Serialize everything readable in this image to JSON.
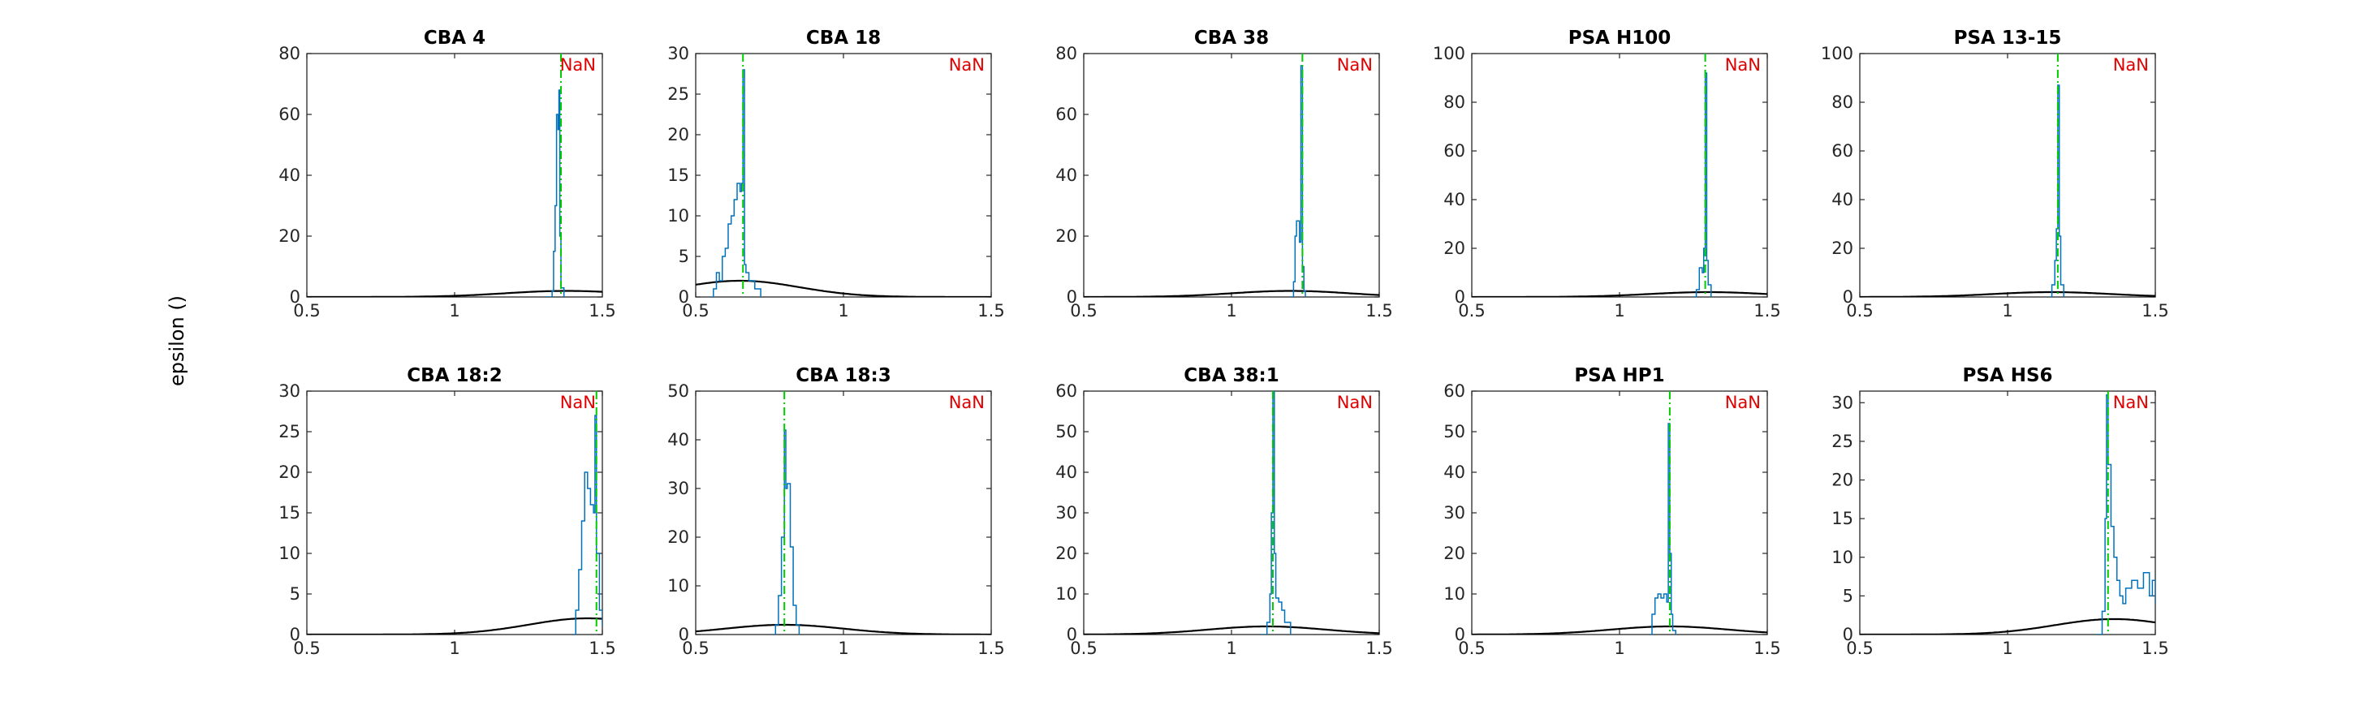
{
  "figure": {
    "ylabel": "epsilon ()",
    "colors": {
      "histogram": "#0072bd",
      "curve": "#000000",
      "reference_line": "#00cc00",
      "annotation": "#e00000"
    }
  },
  "chart_data": [
    {
      "type": "line",
      "title": "CBA 4",
      "annotation": "NaN",
      "xlim": [
        0.5,
        1.5
      ],
      "ylim": [
        0,
        80
      ],
      "xticks": [
        0.5,
        1,
        1.5
      ],
      "yticks": [
        0,
        20,
        40,
        60,
        80
      ],
      "xtick_labels": [
        "0.5",
        "1",
        "1.5"
      ],
      "reference_x": 1.36,
      "curve": {
        "mu": 1.38,
        "sigma": 0.21,
        "peak": 2
      },
      "histogram": [
        [
          1.31,
          0
        ],
        [
          1.33,
          2
        ],
        [
          1.335,
          15
        ],
        [
          1.34,
          30
        ],
        [
          1.345,
          60
        ],
        [
          1.35,
          55
        ],
        [
          1.353,
          68
        ],
        [
          1.356,
          20
        ],
        [
          1.36,
          3
        ],
        [
          1.37,
          0
        ]
      ]
    },
    {
      "type": "line",
      "title": "CBA 18",
      "annotation": "NaN",
      "xlim": [
        0.5,
        1.5
      ],
      "ylim": [
        0,
        30
      ],
      "xticks": [
        0.5,
        1,
        1.5
      ],
      "yticks": [
        0,
        5,
        10,
        15,
        20,
        25,
        30
      ],
      "xtick_labels": [
        "0.5",
        "1",
        "1.5"
      ],
      "reference_x": 0.66,
      "curve": {
        "mu": 0.65,
        "sigma": 0.2,
        "peak": 2
      },
      "histogram": [
        [
          0.55,
          0
        ],
        [
          0.56,
          1
        ],
        [
          0.57,
          3
        ],
        [
          0.58,
          2
        ],
        [
          0.59,
          5
        ],
        [
          0.6,
          6
        ],
        [
          0.61,
          9
        ],
        [
          0.62,
          10
        ],
        [
          0.63,
          12
        ],
        [
          0.64,
          14
        ],
        [
          0.65,
          13
        ],
        [
          0.655,
          14
        ],
        [
          0.66,
          28
        ],
        [
          0.665,
          4
        ],
        [
          0.67,
          3
        ],
        [
          0.68,
          2
        ],
        [
          0.7,
          1
        ],
        [
          0.72,
          0
        ]
      ]
    },
    {
      "type": "line",
      "title": "CBA 38",
      "annotation": "NaN",
      "xlim": [
        0.5,
        1.5
      ],
      "ylim": [
        0,
        80
      ],
      "xticks": [
        0.5,
        1,
        1.5
      ],
      "yticks": [
        0,
        20,
        40,
        60,
        80
      ],
      "xtick_labels": [
        "0.5",
        "1",
        "1.5"
      ],
      "reference_x": 1.24,
      "curve": {
        "mu": 1.2,
        "sigma": 0.2,
        "peak": 2
      },
      "histogram": [
        [
          1.2,
          0
        ],
        [
          1.21,
          5
        ],
        [
          1.215,
          20
        ],
        [
          1.22,
          25
        ],
        [
          1.23,
          18
        ],
        [
          1.235,
          76
        ],
        [
          1.24,
          10
        ],
        [
          1.245,
          2
        ],
        [
          1.25,
          0
        ]
      ]
    },
    {
      "type": "line",
      "title": "PSA H100",
      "annotation": "NaN",
      "xlim": [
        0.5,
        1.5
      ],
      "ylim": [
        0,
        100
      ],
      "xticks": [
        0.5,
        1,
        1.5
      ],
      "yticks": [
        0,
        20,
        40,
        60,
        80,
        100
      ],
      "xtick_labels": [
        "0.5",
        "1",
        "1.5"
      ],
      "reference_x": 1.29,
      "curve": {
        "mu": 1.3,
        "sigma": 0.2,
        "peak": 2
      },
      "histogram": [
        [
          1.25,
          0
        ],
        [
          1.26,
          3
        ],
        [
          1.27,
          12
        ],
        [
          1.28,
          10
        ],
        [
          1.285,
          20
        ],
        [
          1.29,
          92
        ],
        [
          1.295,
          15
        ],
        [
          1.3,
          5
        ],
        [
          1.31,
          0
        ]
      ]
    },
    {
      "type": "line",
      "title": "PSA 13-15",
      "annotation": "NaN",
      "xlim": [
        0.5,
        1.5
      ],
      "ylim": [
        0,
        100
      ],
      "xticks": [
        0.5,
        1,
        1.5
      ],
      "yticks": [
        0,
        20,
        40,
        60,
        80,
        100
      ],
      "xtick_labels": [
        "0.5",
        "1",
        "1.5"
      ],
      "reference_x": 1.17,
      "curve": {
        "mu": 1.15,
        "sigma": 0.2,
        "peak": 2
      },
      "histogram": [
        [
          1.14,
          0
        ],
        [
          1.15,
          5
        ],
        [
          1.16,
          15
        ],
        [
          1.165,
          28
        ],
        [
          1.17,
          87
        ],
        [
          1.175,
          25
        ],
        [
          1.18,
          5
        ],
        [
          1.19,
          0
        ]
      ]
    },
    {
      "type": "line",
      "title": "CBA 18:2",
      "annotation": "NaN",
      "xlim": [
        0.5,
        1.5
      ],
      "ylim": [
        0,
        30
      ],
      "xticks": [
        0.5,
        1,
        1.5
      ],
      "yticks": [
        0,
        5,
        10,
        15,
        20,
        25,
        30
      ],
      "xtick_labels": [
        "0.5",
        "1",
        "1.5"
      ],
      "reference_x": 1.48,
      "curve": {
        "mu": 1.45,
        "sigma": 0.2,
        "peak": 2
      },
      "histogram": [
        [
          1.4,
          0
        ],
        [
          1.41,
          3
        ],
        [
          1.42,
          8
        ],
        [
          1.43,
          14
        ],
        [
          1.44,
          20
        ],
        [
          1.45,
          18
        ],
        [
          1.46,
          16
        ],
        [
          1.47,
          15
        ],
        [
          1.475,
          27
        ],
        [
          1.48,
          10
        ],
        [
          1.49,
          3
        ],
        [
          1.5,
          1
        ]
      ]
    },
    {
      "type": "line",
      "title": "CBA 18:3",
      "annotation": "NaN",
      "xlim": [
        0.5,
        1.5
      ],
      "ylim": [
        0,
        50
      ],
      "xticks": [
        0.5,
        1,
        1.5
      ],
      "yticks": [
        0,
        10,
        20,
        30,
        40,
        50
      ],
      "xtick_labels": [
        "0.5",
        "1",
        "1.5"
      ],
      "reference_x": 0.8,
      "curve": {
        "mu": 0.8,
        "sigma": 0.2,
        "peak": 2
      },
      "histogram": [
        [
          0.76,
          0
        ],
        [
          0.77,
          2
        ],
        [
          0.78,
          8
        ],
        [
          0.79,
          20
        ],
        [
          0.8,
          42
        ],
        [
          0.805,
          30
        ],
        [
          0.81,
          31
        ],
        [
          0.82,
          18
        ],
        [
          0.83,
          6
        ],
        [
          0.84,
          2
        ],
        [
          0.85,
          0
        ]
      ]
    },
    {
      "type": "line",
      "title": "CBA 38:1",
      "annotation": "NaN",
      "xlim": [
        0.5,
        1.5
      ],
      "ylim": [
        0,
        60
      ],
      "xticks": [
        0.5,
        1,
        1.5
      ],
      "yticks": [
        0,
        10,
        20,
        30,
        40,
        50,
        60
      ],
      "xtick_labels": [
        "0.5",
        "1",
        "1.5"
      ],
      "reference_x": 1.14,
      "curve": {
        "mu": 1.12,
        "sigma": 0.2,
        "peak": 2
      },
      "histogram": [
        [
          1.1,
          0
        ],
        [
          1.12,
          3
        ],
        [
          1.13,
          10
        ],
        [
          1.135,
          30
        ],
        [
          1.14,
          60
        ],
        [
          1.145,
          20
        ],
        [
          1.15,
          9
        ],
        [
          1.16,
          8
        ],
        [
          1.17,
          6
        ],
        [
          1.18,
          3
        ],
        [
          1.2,
          0
        ]
      ]
    },
    {
      "type": "line",
      "title": "PSA HP1",
      "annotation": "NaN",
      "xlim": [
        0.5,
        1.5
      ],
      "ylim": [
        0,
        60
      ],
      "xticks": [
        0.5,
        1,
        1.5
      ],
      "yticks": [
        0,
        10,
        20,
        30,
        40,
        50,
        60
      ],
      "xtick_labels": [
        "0.5",
        "1",
        "1.5"
      ],
      "reference_x": 1.17,
      "curve": {
        "mu": 1.17,
        "sigma": 0.2,
        "peak": 2
      },
      "histogram": [
        [
          1.1,
          0
        ],
        [
          1.11,
          5
        ],
        [
          1.12,
          9
        ],
        [
          1.13,
          10
        ],
        [
          1.14,
          9
        ],
        [
          1.15,
          10
        ],
        [
          1.16,
          8
        ],
        [
          1.165,
          52
        ],
        [
          1.17,
          20
        ],
        [
          1.175,
          5
        ],
        [
          1.18,
          1
        ],
        [
          1.19,
          0
        ]
      ]
    },
    {
      "type": "line",
      "title": "PSA HS6",
      "annotation": "NaN",
      "xlim": [
        0.5,
        1.5
      ],
      "ylim": [
        0,
        31.5
      ],
      "xticks": [
        0.5,
        1,
        1.5
      ],
      "yticks": [
        0,
        5,
        10,
        15,
        20,
        25,
        30
      ],
      "xtick_labels": [
        "0.5",
        "1",
        "1.5"
      ],
      "reference_x": 1.34,
      "curve": {
        "mu": 1.36,
        "sigma": 0.2,
        "peak": 2
      },
      "histogram": [
        [
          1.3,
          0
        ],
        [
          1.32,
          3
        ],
        [
          1.33,
          15
        ],
        [
          1.335,
          31
        ],
        [
          1.34,
          22
        ],
        [
          1.35,
          14
        ],
        [
          1.36,
          10
        ],
        [
          1.37,
          7
        ],
        [
          1.38,
          5
        ],
        [
          1.39,
          4
        ],
        [
          1.4,
          6
        ],
        [
          1.42,
          7
        ],
        [
          1.44,
          6
        ],
        [
          1.46,
          8
        ],
        [
          1.48,
          5
        ],
        [
          1.49,
          7
        ],
        [
          1.5,
          4
        ]
      ]
    }
  ]
}
